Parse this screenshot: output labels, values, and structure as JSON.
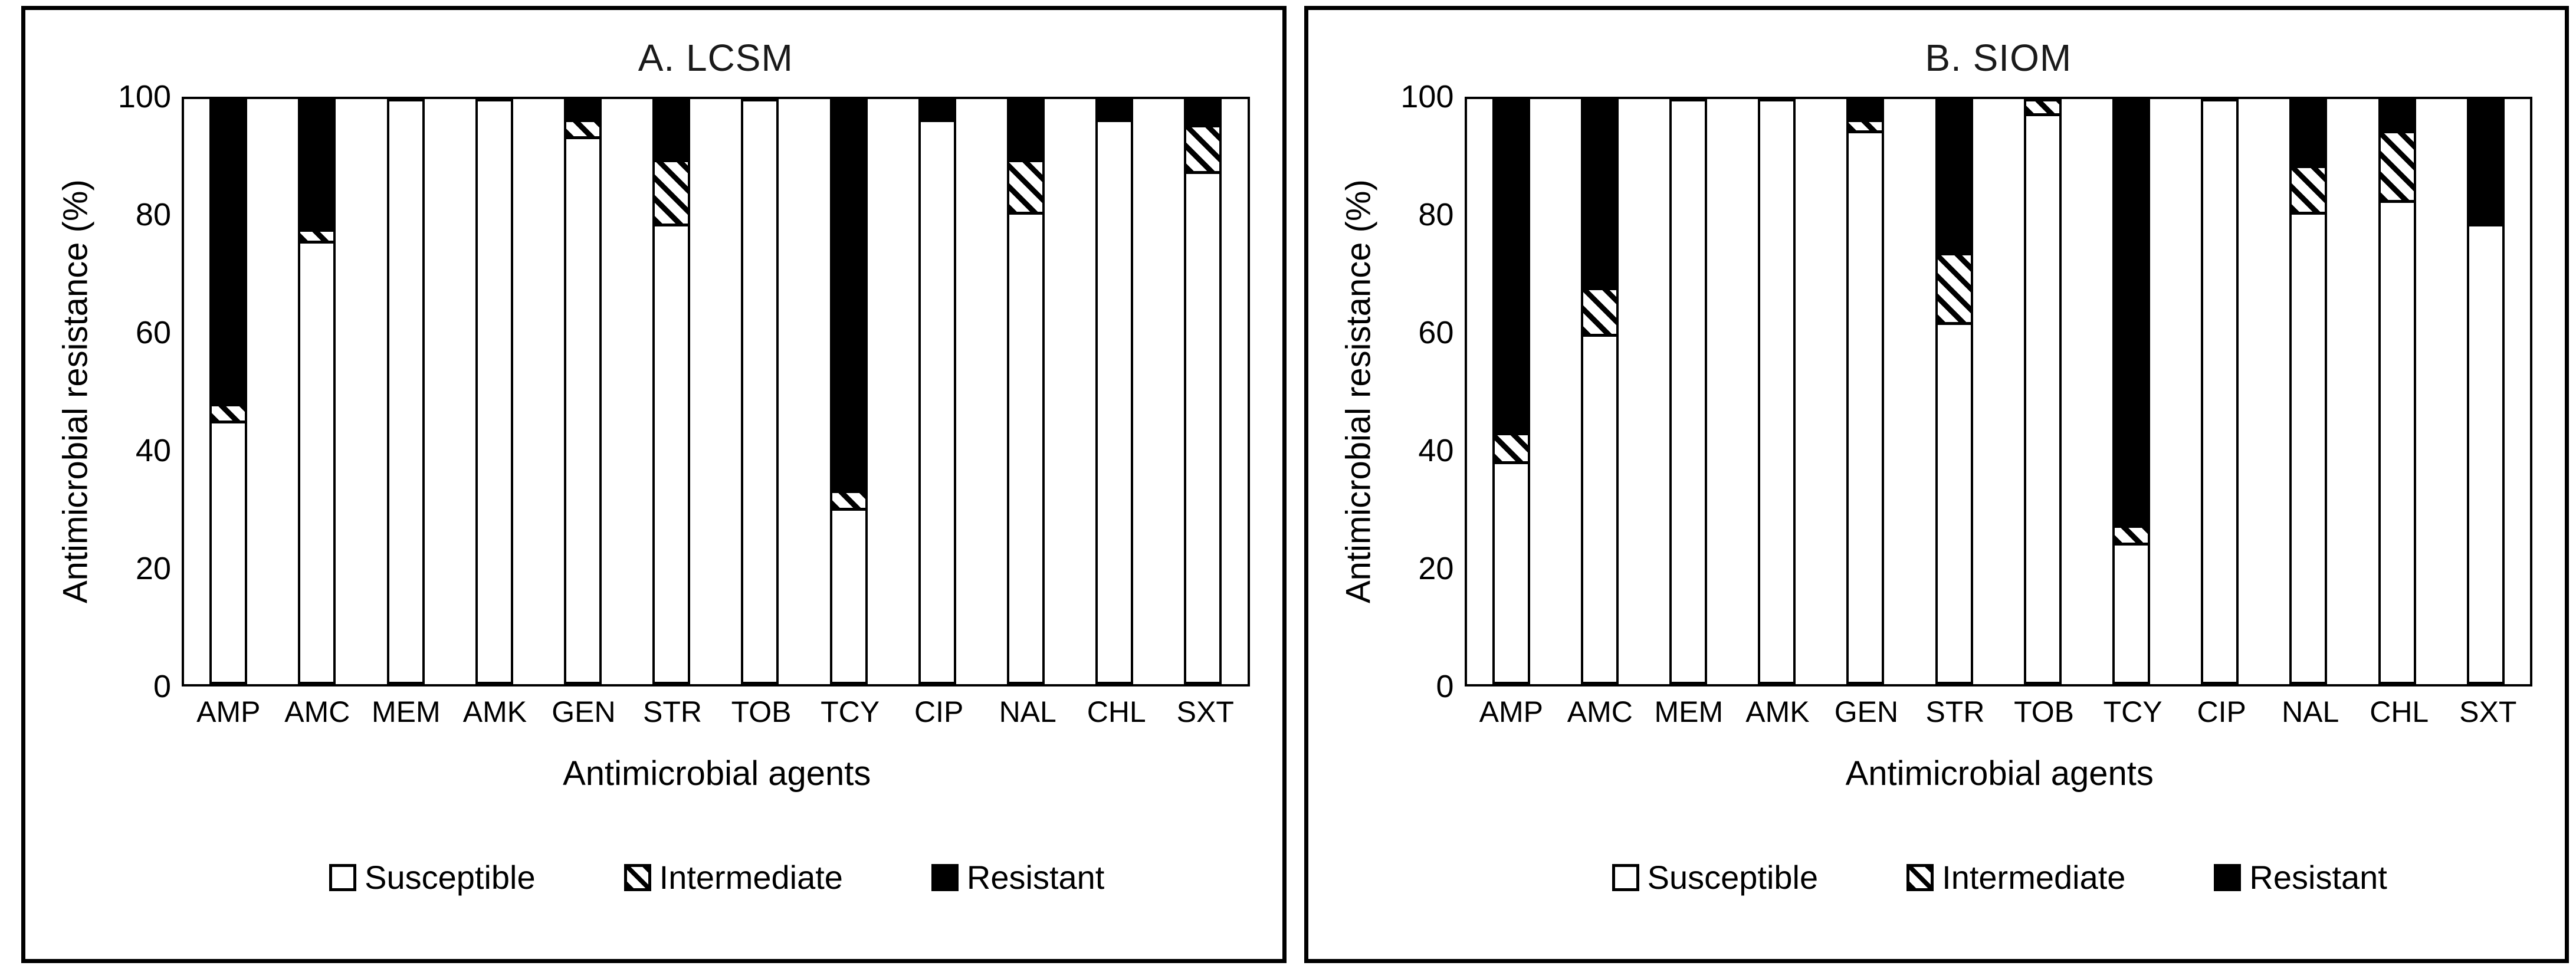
{
  "page": {
    "background": "#ffffff",
    "foreground": "#000000",
    "bar_fill_susceptible": "#ffffff",
    "bar_fill_intermediate": "hatch-diagonal",
    "bar_fill_resistant": "#000000"
  },
  "legend": {
    "items": [
      {
        "label": "Susceptible",
        "swatch": "white"
      },
      {
        "label": "Intermediate",
        "swatch": "hatch"
      },
      {
        "label": "Resistant",
        "swatch": "black"
      }
    ]
  },
  "chart_data": [
    {
      "type": "bar",
      "stacked": true,
      "title": "A. LCSM",
      "xlabel": "Antimicrobial agents",
      "ylabel": "Antimicrobial resistance (%)",
      "ylim": [
        0,
        100
      ],
      "y_ticks": [
        "100",
        "80",
        "60",
        "40",
        "20",
        "0"
      ],
      "grid": false,
      "legend_position": "bottom",
      "categories": [
        "AMP",
        "AMC",
        "MEM",
        "AMK",
        "GEN",
        "STR",
        "TOB",
        "TCY",
        "CIP",
        "NAL",
        "CHL",
        "SXT"
      ],
      "series": [
        {
          "name": "Susceptible",
          "values": [
            45,
            76,
            100,
            100,
            94,
            79,
            100,
            30,
            97,
            81,
            97,
            88
          ]
        },
        {
          "name": "Intermediate",
          "values": [
            3,
            2,
            0,
            0,
            3,
            11,
            0,
            3,
            0,
            9,
            0,
            8
          ]
        },
        {
          "name": "Resistant",
          "values": [
            52,
            22,
            0,
            0,
            3,
            10,
            0,
            67,
            3,
            10,
            3,
            4
          ]
        }
      ]
    },
    {
      "type": "bar",
      "stacked": true,
      "title": "B. SIOM",
      "xlabel": "Antimicrobial agents",
      "ylabel": "Antimicrobial resistance (%)",
      "ylim": [
        0,
        100
      ],
      "y_ticks": [
        "100",
        "80",
        "60",
        "40",
        "20",
        "0"
      ],
      "grid": false,
      "legend_position": "bottom",
      "categories": [
        "AMP",
        "AMC",
        "MEM",
        "AMK",
        "GEN",
        "STR",
        "TOB",
        "TCY",
        "CIP",
        "NAL",
        "CHL",
        "SXT"
      ],
      "series": [
        {
          "name": "Susceptible",
          "values": [
            38,
            60,
            100,
            100,
            95,
            62,
            98,
            24,
            100,
            81,
            83,
            79
          ]
        },
        {
          "name": "Intermediate",
          "values": [
            5,
            8,
            0,
            0,
            2,
            12,
            2,
            3,
            0,
            8,
            12,
            0
          ]
        },
        {
          "name": "Resistant",
          "values": [
            57,
            32,
            0,
            0,
            3,
            26,
            0,
            73,
            0,
            11,
            5,
            21
          ]
        }
      ]
    }
  ]
}
